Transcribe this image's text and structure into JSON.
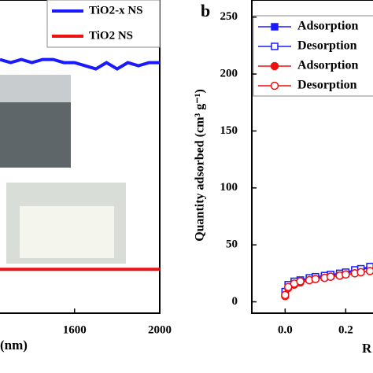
{
  "chart_data": [
    {
      "type": "line",
      "xlabel": "(nm)",
      "x": [
        1250,
        1300,
        1350,
        1400,
        1450,
        1500,
        1550,
        1600,
        1650,
        1700,
        1750,
        1800,
        1850,
        1900,
        1950,
        2000
      ],
      "xlim": [
        1250,
        2000
      ],
      "xticks": [
        1600,
        2000
      ],
      "ylim": [
        0,
        1
      ],
      "series": [
        {
          "name": "TiO2-x NS",
          "color": "#1a1aff",
          "values": [
            0.81,
            0.8,
            0.81,
            0.8,
            0.81,
            0.81,
            0.8,
            0.8,
            0.79,
            0.78,
            0.8,
            0.78,
            0.8,
            0.79,
            0.8,
            0.8
          ]
        },
        {
          "name": "TiO2 NS",
          "color": "#ee1111",
          "values": [
            0.14,
            0.14,
            0.14,
            0.14,
            0.14,
            0.14,
            0.14,
            0.14,
            0.14,
            0.14,
            0.14,
            0.14,
            0.14,
            0.14,
            0.14,
            0.14
          ]
        }
      ]
    },
    {
      "type": "scatter-line",
      "label": "b",
      "ylabel": "Quantity adsorbed (cm³ g⁻¹)",
      "xlabel": "R",
      "x": [
        0,
        0.01,
        0.03,
        0.05,
        0.08,
        0.1,
        0.13,
        0.15,
        0.18,
        0.2,
        0.23,
        0.25,
        0.28
      ],
      "xlim": [
        -0.11,
        0.29
      ],
      "xticks": [
        {
          "value": 0,
          "label": "0.0"
        },
        0.2
      ],
      "ylim": [
        -10,
        265
      ],
      "yticks": [
        0,
        50,
        100,
        150,
        200,
        250
      ],
      "series": [
        {
          "name": "Adsorption",
          "color": "#1a1aff",
          "marker": "square",
          "filled": true,
          "values": [
            8,
            14,
            17,
            19,
            20,
            21,
            22,
            23,
            24,
            25,
            27,
            28,
            30
          ]
        },
        {
          "name": "Desorption",
          "color": "#1a1aff",
          "marker": "square",
          "filled": false,
          "values": [
            9,
            15,
            18,
            19,
            21,
            22,
            23,
            24,
            25,
            26,
            28,
            29,
            31
          ]
        },
        {
          "name": "Adsorption",
          "color": "#ee1111",
          "marker": "circle",
          "filled": true,
          "values": [
            5,
            12,
            15,
            17,
            19,
            20,
            21,
            22,
            23,
            24,
            25,
            26,
            27
          ]
        },
        {
          "name": "Desorption",
          "color": "#ee1111",
          "marker": "circle",
          "filled": false,
          "values": [
            6,
            13,
            16,
            18,
            19,
            20,
            21,
            22,
            23,
            24,
            25,
            26,
            27
          ]
        }
      ]
    }
  ]
}
